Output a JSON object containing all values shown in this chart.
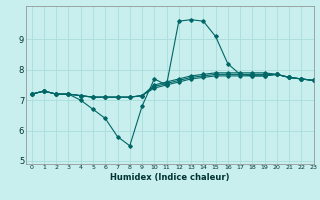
{
  "title": "",
  "xlabel": "Humidex (Indice chaleur)",
  "ylabel": "",
  "background_color": "#c8eeee",
  "grid_color": "#aadddd",
  "line_color": "#006666",
  "xlim": [
    -0.5,
    23
  ],
  "ylim": [
    4.9,
    10.1
  ],
  "yticks": [
    5,
    6,
    7,
    8,
    9
  ],
  "xticks": [
    0,
    1,
    2,
    3,
    4,
    5,
    6,
    7,
    8,
    9,
    10,
    11,
    12,
    13,
    14,
    15,
    16,
    17,
    18,
    19,
    20,
    21,
    22,
    23
  ],
  "series": [
    {
      "x": [
        0,
        1,
        2,
        3,
        4,
        5,
        6,
        7,
        8,
        9,
        10,
        11,
        12,
        13,
        14,
        15,
        16,
        17,
        18,
        19,
        20,
        21,
        22,
        23
      ],
      "y": [
        7.2,
        7.3,
        7.2,
        7.2,
        7.0,
        6.7,
        6.4,
        5.8,
        5.5,
        6.8,
        7.7,
        7.5,
        9.6,
        9.65,
        9.6,
        9.1,
        8.2,
        7.85,
        7.8,
        7.8,
        7.85,
        7.75,
        7.7,
        7.65
      ]
    },
    {
      "x": [
        0,
        1,
        2,
        3,
        4,
        5,
        6,
        7,
        8,
        9,
        10,
        11,
        12,
        13,
        14,
        15,
        16,
        17,
        18,
        19,
        20,
        21,
        22,
        23
      ],
      "y": [
        7.2,
        7.3,
        7.2,
        7.2,
        7.15,
        7.1,
        7.1,
        7.1,
        7.1,
        7.15,
        7.4,
        7.5,
        7.6,
        7.7,
        7.75,
        7.8,
        7.8,
        7.8,
        7.8,
        7.8,
        7.85,
        7.75,
        7.7,
        7.65
      ]
    },
    {
      "x": [
        0,
        1,
        2,
        3,
        4,
        5,
        6,
        7,
        8,
        9,
        10,
        11,
        12,
        13,
        14,
        15,
        16,
        17,
        18,
        19,
        20,
        21,
        22,
        23
      ],
      "y": [
        7.2,
        7.3,
        7.2,
        7.2,
        7.15,
        7.1,
        7.1,
        7.1,
        7.1,
        7.15,
        7.45,
        7.55,
        7.65,
        7.75,
        7.8,
        7.85,
        7.85,
        7.85,
        7.85,
        7.85,
        7.85,
        7.75,
        7.7,
        7.65
      ]
    },
    {
      "x": [
        0,
        1,
        2,
        3,
        4,
        5,
        6,
        7,
        8,
        9,
        10,
        11,
        12,
        13,
        14,
        15,
        16,
        17,
        18,
        19,
        20,
        21,
        22,
        23
      ],
      "y": [
        7.2,
        7.3,
        7.2,
        7.2,
        7.15,
        7.1,
        7.1,
        7.1,
        7.1,
        7.15,
        7.5,
        7.6,
        7.7,
        7.8,
        7.85,
        7.9,
        7.9,
        7.9,
        7.9,
        7.9,
        7.85,
        7.75,
        7.7,
        7.65
      ]
    }
  ]
}
